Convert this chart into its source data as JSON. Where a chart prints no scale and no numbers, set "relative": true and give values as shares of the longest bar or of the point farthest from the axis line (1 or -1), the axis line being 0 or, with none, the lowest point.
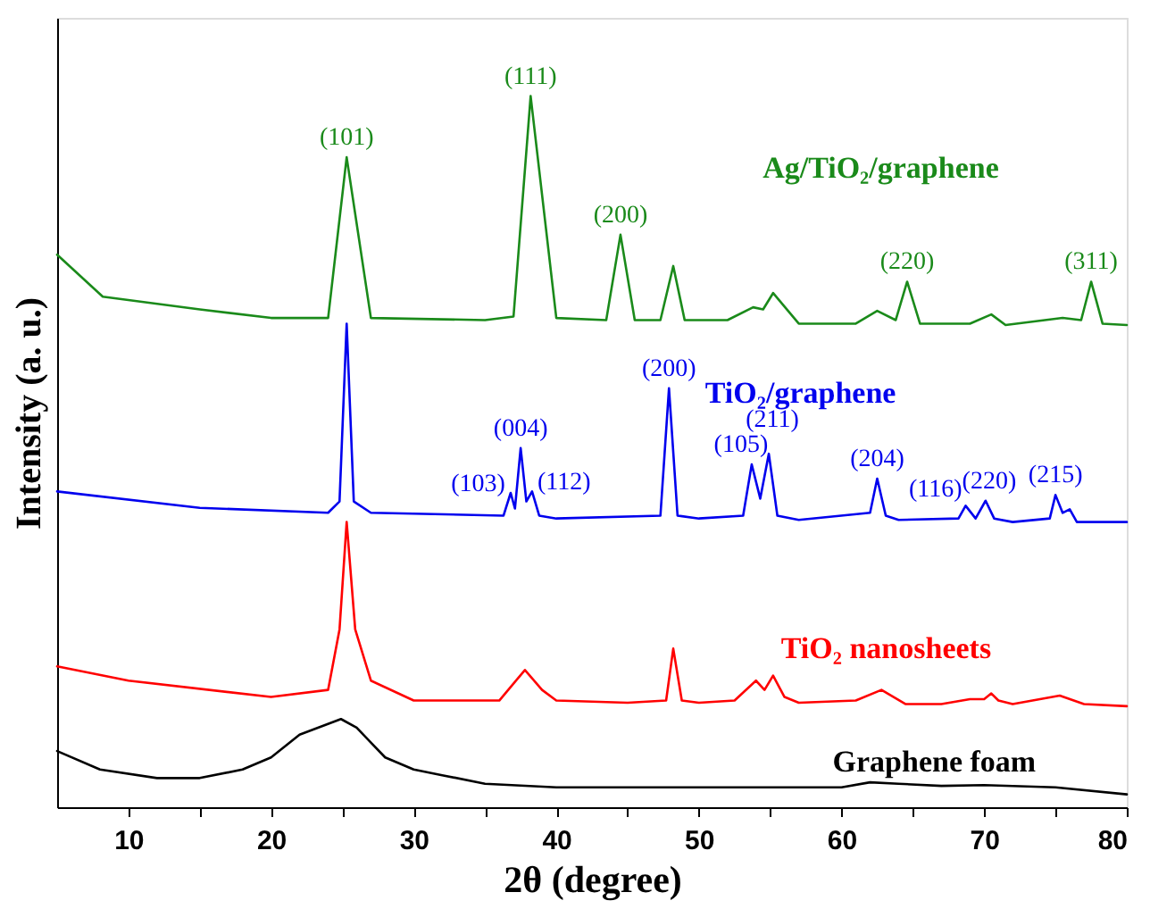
{
  "chart_data": {
    "type": "line",
    "relative": true,
    "xlabel": "2θ (degree)",
    "ylabel": "Intensity (a. u.)",
    "xlim": [
      5,
      80
    ],
    "xticks": [
      10,
      {
        "value": 15,
        "label": null
      },
      20,
      {
        "value": 25,
        "label": null
      },
      30,
      {
        "value": 35,
        "label": null
      },
      40,
      {
        "value": 45,
        "label": null
      },
      50,
      {
        "value": 55,
        "label": null
      },
      60,
      {
        "value": 65,
        "label": null
      },
      70,
      {
        "value": 75,
        "label": null
      },
      80
    ],
    "grid": false,
    "legend": false,
    "tick_labels": "x",
    "marker": "none",
    "line_style": "solid",
    "series": [
      {
        "name": "Ag/TiO₂/graphene",
        "color": "#1a8a1a",
        "x": [
          5,
          8.2,
          15,
          20,
          24,
          25.3,
          27,
          35,
          37,
          38.2,
          40,
          43.5,
          44.5,
          45.5,
          47.3,
          48.2,
          49,
          52,
          53.8,
          54.5,
          55.2,
          57,
          61,
          62.5,
          63.8,
          64.6,
          65.5,
          69,
          70.5,
          71.5,
          75.5,
          76.8,
          77.5,
          78.3,
          80
        ],
        "values": [
          0.777,
          0.718,
          0.7,
          0.688,
          0.688,
          0.914,
          0.688,
          0.685,
          0.69,
          1.0,
          0.688,
          0.685,
          0.805,
          0.685,
          0.685,
          0.761,
          0.685,
          0.685,
          0.703,
          0.7,
          0.723,
          0.68,
          0.68,
          0.698,
          0.685,
          0.739,
          0.68,
          0.68,
          0.693,
          0.678,
          0.688,
          0.685,
          0.739,
          0.68,
          0.678
        ]
      },
      {
        "name": "TiO₂/graphene",
        "color": "#0000ee",
        "x": [
          5,
          15,
          24,
          24.8,
          25.3,
          25.8,
          27,
          36.3,
          36.8,
          37.1,
          37.5,
          37.9,
          38.3,
          38.8,
          40,
          47.3,
          47.9,
          48.5,
          50,
          53.1,
          53.7,
          54.3,
          54.9,
          55.5,
          57,
          62,
          62.5,
          63.1,
          64,
          68.2,
          68.7,
          69.4,
          70.1,
          70.7,
          72,
          74.6,
          75,
          75.5,
          76,
          76.5,
          80
        ],
        "values": [
          0.444,
          0.421,
          0.414,
          0.43,
          0.68,
          0.43,
          0.414,
          0.41,
          0.442,
          0.42,
          0.505,
          0.43,
          0.444,
          0.41,
          0.406,
          0.41,
          0.589,
          0.41,
          0.406,
          0.41,
          0.482,
          0.434,
          0.497,
          0.41,
          0.404,
          0.414,
          0.462,
          0.41,
          0.404,
          0.406,
          0.424,
          0.406,
          0.431,
          0.406,
          0.401,
          0.406,
          0.439,
          0.414,
          0.419,
          0.401,
          0.401
        ]
      },
      {
        "name": "TiO₂ nanosheets",
        "color": "#ff0000",
        "x": [
          5,
          10,
          20,
          24,
          24.8,
          25.3,
          25.9,
          27,
          30,
          36,
          37.8,
          39,
          40,
          45,
          47.7,
          48.2,
          48.8,
          50,
          52.5,
          54,
          54.6,
          55.2,
          56,
          57,
          61,
          62.8,
          64.5,
          67,
          69,
          70,
          70.5,
          71,
          72,
          75.3,
          77,
          80
        ],
        "values": [
          0.198,
          0.178,
          0.155,
          0.165,
          0.25,
          0.401,
          0.25,
          0.178,
          0.15,
          0.15,
          0.193,
          0.165,
          0.15,
          0.147,
          0.15,
          0.223,
          0.15,
          0.147,
          0.15,
          0.178,
          0.165,
          0.185,
          0.155,
          0.147,
          0.15,
          0.165,
          0.145,
          0.145,
          0.152,
          0.152,
          0.16,
          0.15,
          0.145,
          0.157,
          0.145,
          0.142
        ]
      },
      {
        "name": "Graphene foam",
        "color": "#000000",
        "x": [
          5,
          8,
          12,
          15,
          18,
          20,
          22,
          24.9,
          26,
          27,
          28,
          30,
          32,
          35,
          40,
          45,
          50,
          55,
          60,
          62,
          64,
          67,
          70,
          75,
          80
        ],
        "values": [
          0.079,
          0.053,
          0.041,
          0.041,
          0.053,
          0.07,
          0.102,
          0.124,
          0.112,
          0.091,
          0.07,
          0.053,
          0.045,
          0.033,
          0.028,
          0.028,
          0.028,
          0.028,
          0.028,
          0.035,
          0.033,
          0.03,
          0.031,
          0.028,
          0.018
        ]
      }
    ],
    "annotations": [
      {
        "text": "(101)",
        "x": 25.3,
        "y": 0.914
      },
      {
        "text": "(111)",
        "x": 38.2,
        "y": 1.0
      },
      {
        "text": "(200)",
        "x": 44.5,
        "y": 0.805
      },
      {
        "text": "(220)",
        "x": 64.6,
        "y": 0.739
      },
      {
        "text": "(311)",
        "x": 77.5,
        "y": 0.739
      },
      {
        "text": "(103)",
        "x": 36.8,
        "y": 0.442
      },
      {
        "text": "(004)",
        "x": 37.5,
        "y": 0.505
      },
      {
        "text": "(112)",
        "x": 38.3,
        "y": 0.444
      },
      {
        "text": "(200)",
        "x": 47.9,
        "y": 0.589
      },
      {
        "text": "(105)",
        "x": 53.7,
        "y": 0.482
      },
      {
        "text": "(211)",
        "x": 54.9,
        "y": 0.497
      },
      {
        "text": "(204)",
        "x": 62.5,
        "y": 0.462
      },
      {
        "text": "(116)",
        "x": 68.7,
        "y": 0.424
      },
      {
        "text": "(220)",
        "x": 70.1,
        "y": 0.431
      },
      {
        "text": "(215)",
        "x": 75,
        "y": 0.439
      }
    ]
  }
}
